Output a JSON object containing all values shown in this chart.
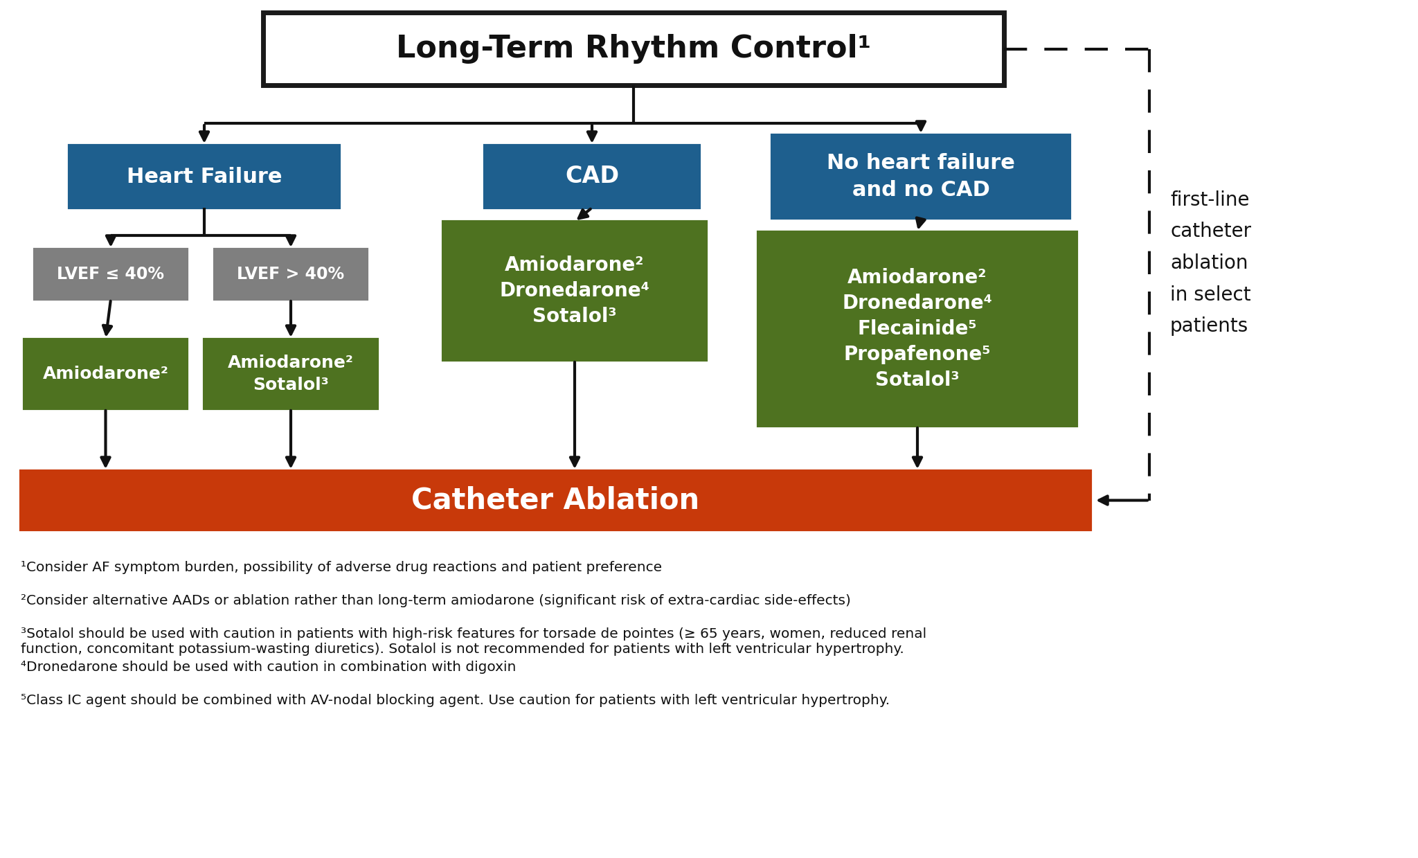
{
  "title": "Long-Term Rhythm Control¹",
  "bg_color": "#ffffff",
  "colors": {
    "top_box_border": "#1a1a1a",
    "top_box_fill": "#ffffff",
    "blue_box": "#1e5f8e",
    "gray_box": "#7f7f7f",
    "green_box": "#4e7220",
    "red_box": "#c8390a",
    "text_white": "#ffffff",
    "text_black": "#111111",
    "arrow": "#111111"
  },
  "footnotes": [
    "¹Consider AF symptom burden, possibility of adverse drug reactions and patient preference",
    "²Consider alternative AADs or ablation rather than long-term amiodarone (significant risk of extra-cardiac side-effects)",
    "³Sotalol should be used with caution in patients with high-risk features for torsade de pointes (≥ 65 years, women, reduced renal\nfunction, concomitant potassium-wasting diuretics). Sotalol is not recommended for patients with left ventricular hypertrophy.",
    "⁴Dronedarone should be used with caution in combination with digoxin",
    "⁵Class IC agent should be combined with AV-nodal blocking agent. Use caution for patients with left ventricular hypertrophy."
  ],
  "side_text": "first-line\ncatheter\nablation\nin select\npatients"
}
